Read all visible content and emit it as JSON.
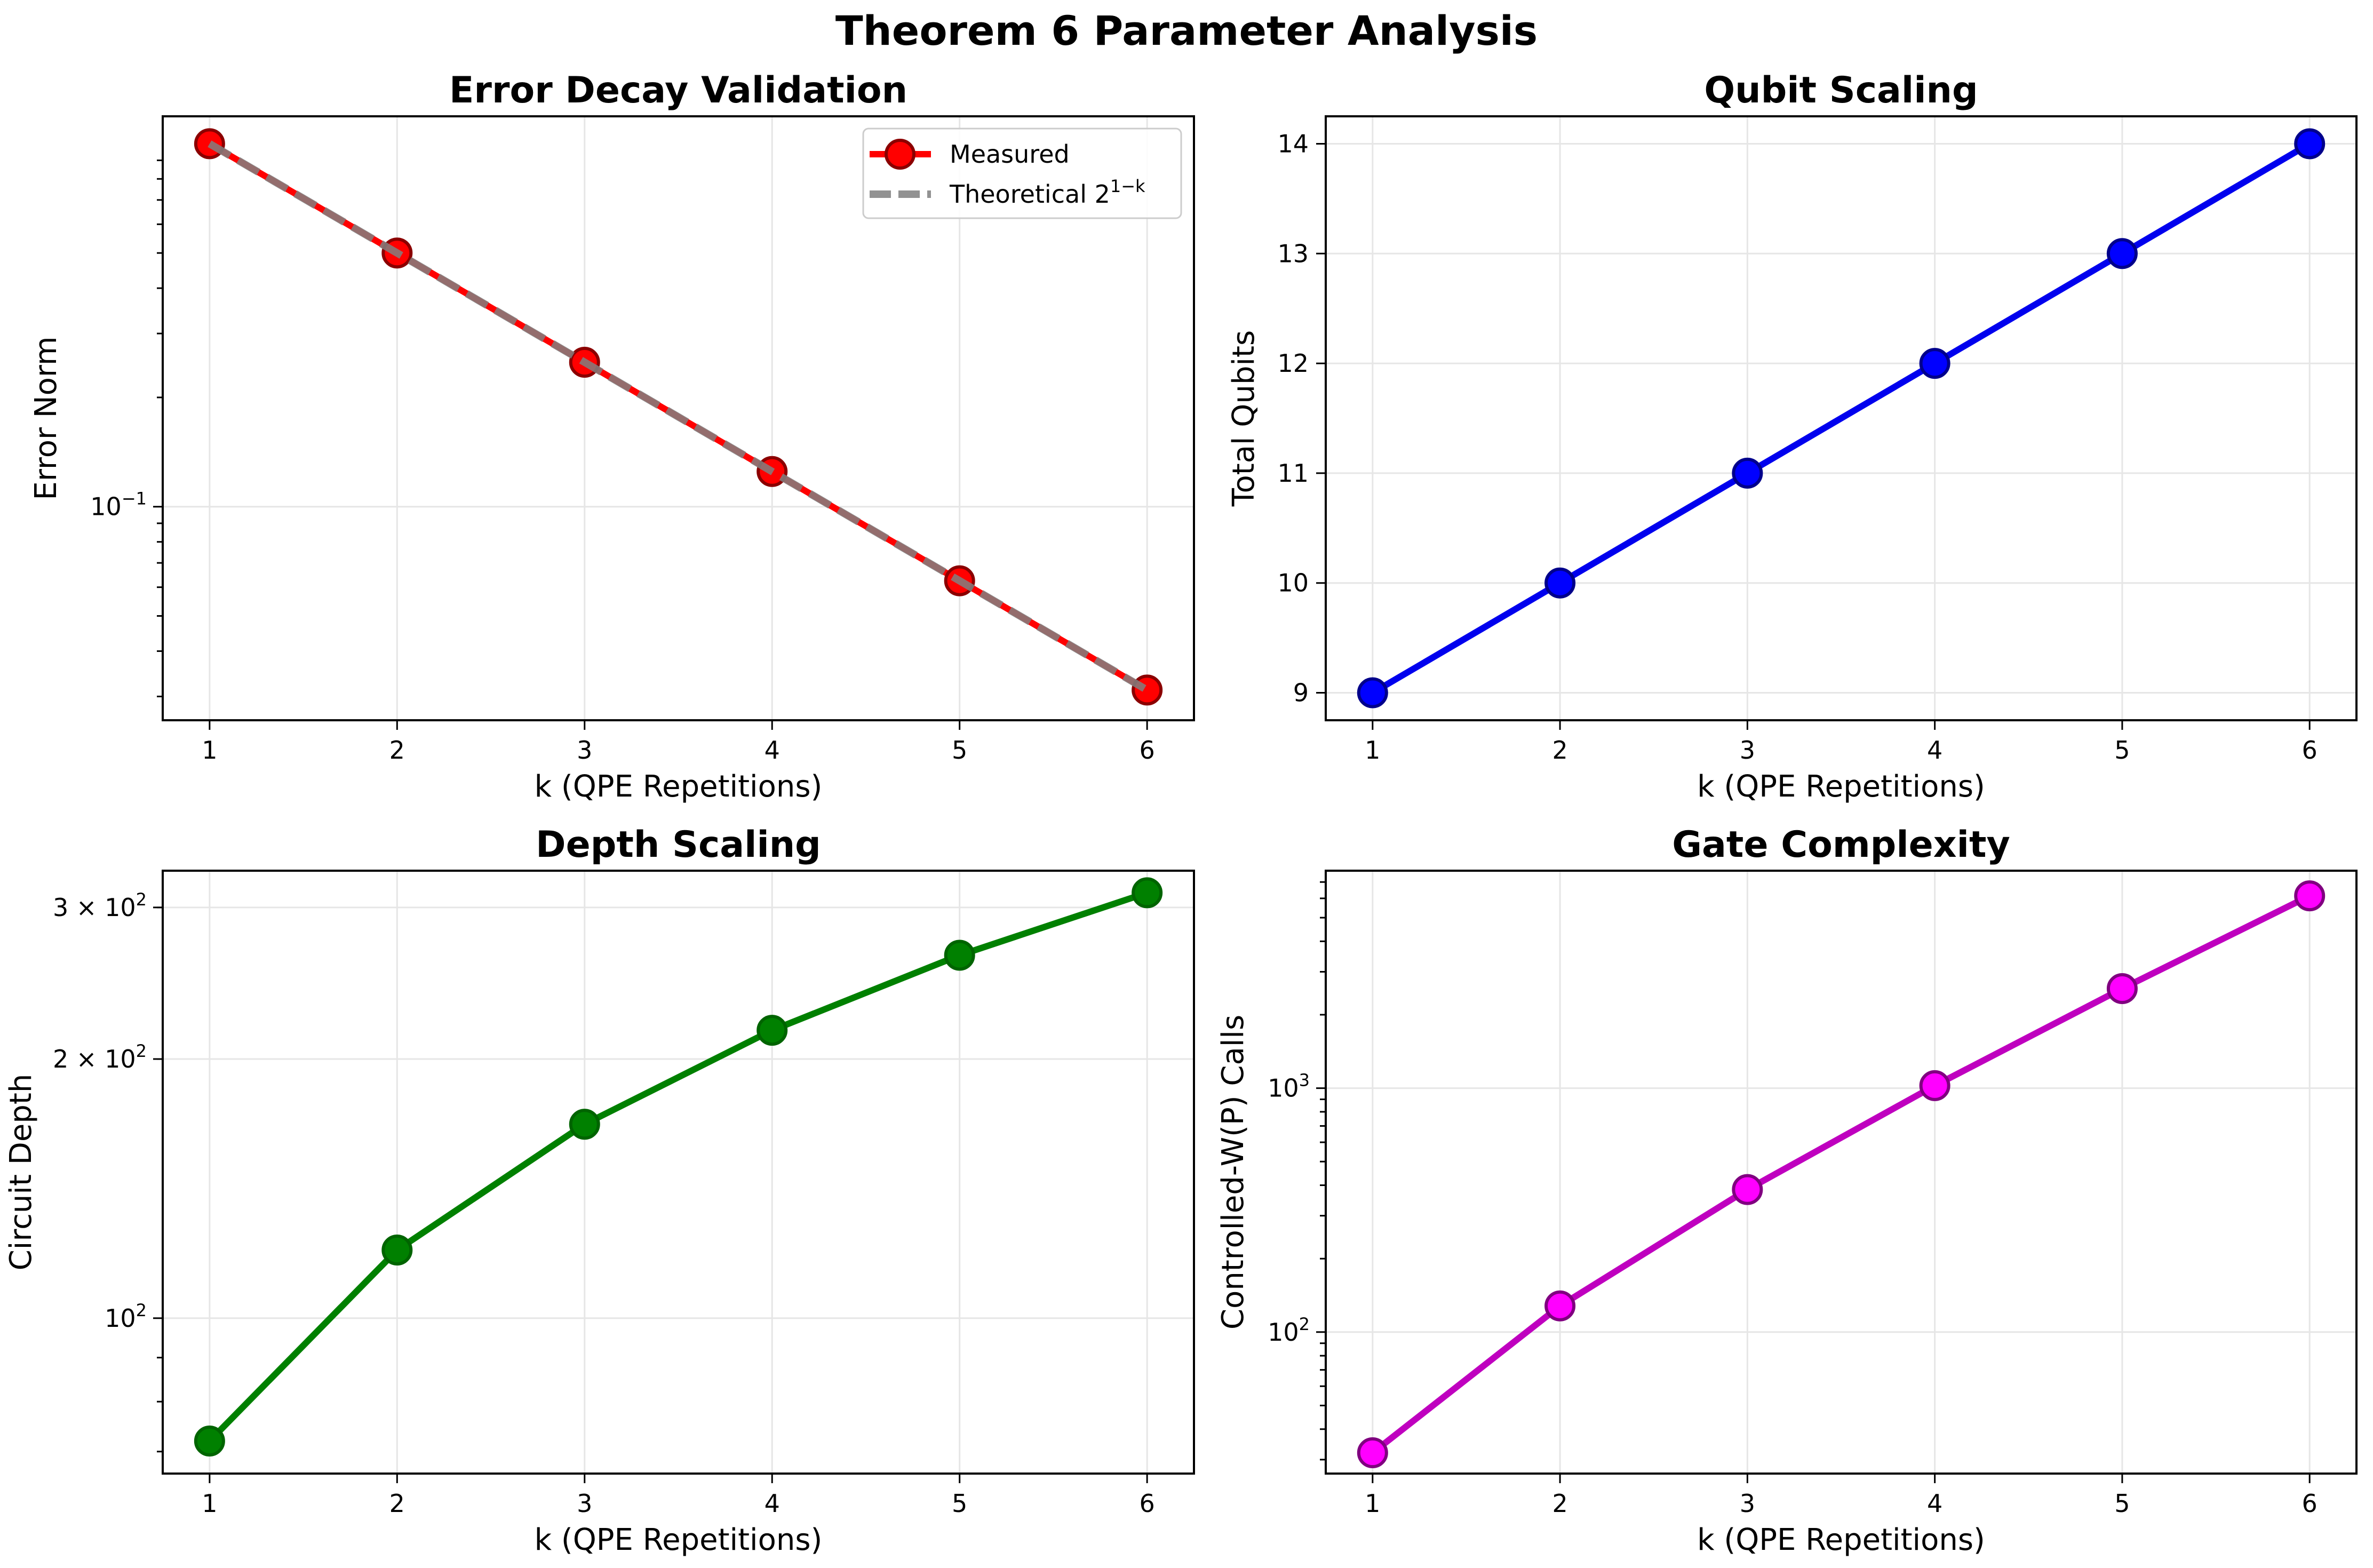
{
  "figure": {
    "title": "Theorem 6 Parameter Analysis"
  },
  "chart_data": [
    {
      "type": "line",
      "title": "Error Decay Validation",
      "xlabel": "k (QPE Repetitions)",
      "ylabel": "Error Norm",
      "yscale": "log",
      "x": [
        1,
        2,
        3,
        4,
        5,
        6
      ],
      "xticks": [
        "1",
        "2",
        "3",
        "4",
        "5",
        "6"
      ],
      "xlim": [
        0.75,
        6.25
      ],
      "ylim": [
        0.0258,
        1.19
      ],
      "yticks": [
        {
          "value": 0.1,
          "base": "10",
          "exp": "−1"
        }
      ],
      "grid": true,
      "legend": "top-right",
      "series": [
        {
          "name": "Measured",
          "values": [
            1.0,
            0.5,
            0.25,
            0.125,
            0.0625,
            0.03125
          ],
          "color": "#ff0000",
          "edge": "#8b0000",
          "style": "solid-markers"
        },
        {
          "name": "Theoretical 2",
          "name_sup": "1−k",
          "values": [
            1.0,
            0.5,
            0.25,
            0.125,
            0.0625,
            0.03125
          ],
          "color": "#808080",
          "style": "dashed"
        }
      ]
    },
    {
      "type": "line",
      "title": "Qubit Scaling",
      "xlabel": "k (QPE Repetitions)",
      "ylabel": "Total Qubits",
      "yscale": "linear",
      "x": [
        1,
        2,
        3,
        4,
        5,
        6
      ],
      "xticks": [
        "1",
        "2",
        "3",
        "4",
        "5",
        "6"
      ],
      "xlim": [
        0.75,
        6.25
      ],
      "ylim": [
        8.75,
        14.25
      ],
      "yticks": [
        {
          "value": 9,
          "label": "9"
        },
        {
          "value": 10,
          "label": "10"
        },
        {
          "value": 11,
          "label": "11"
        },
        {
          "value": 12,
          "label": "12"
        },
        {
          "value": 13,
          "label": "13"
        },
        {
          "value": 14,
          "label": "14"
        }
      ],
      "grid": true,
      "series": [
        {
          "values": [
            9,
            10,
            11,
            12,
            13,
            14
          ],
          "color": "#0000ee",
          "fill": "#0000ff",
          "edge": "#00008b"
        }
      ]
    },
    {
      "type": "line",
      "title": "Depth Scaling",
      "xlabel": "k (QPE Repetitions)",
      "ylabel": "Circuit Depth",
      "yscale": "log",
      "x": [
        1,
        2,
        3,
        4,
        5,
        6
      ],
      "xticks": [
        "1",
        "2",
        "3",
        "4",
        "5",
        "6"
      ],
      "xlim": [
        0.75,
        6.25
      ],
      "ylim": [
        66,
        331
      ],
      "yticks": [
        {
          "value": 100,
          "base": "10",
          "exp": "2"
        },
        {
          "value": 200,
          "pre": "2 × ",
          "base": "10",
          "exp": "2"
        },
        {
          "value": 300,
          "pre": "3 × ",
          "base": "10",
          "exp": "2"
        }
      ],
      "grid": true,
      "series": [
        {
          "values": [
            72,
            120,
            168,
            216,
            264,
            312
          ],
          "color": "#008000",
          "fill": "#008000",
          "edge": "#006400"
        }
      ]
    },
    {
      "type": "line",
      "title": "Gate Complexity",
      "xlabel": "k (QPE Repetitions)",
      "ylabel": "Controlled-W(P) Calls",
      "yscale": "log",
      "x": [
        1,
        2,
        3,
        4,
        5,
        6
      ],
      "xticks": [
        "1",
        "2",
        "3",
        "4",
        "5",
        "6"
      ],
      "xlim": [
        0.75,
        6.25
      ],
      "ylim": [
        26.3,
        7790
      ],
      "yticks": [
        {
          "value": 100,
          "base": "10",
          "exp": "2"
        },
        {
          "value": 1000,
          "base": "10",
          "exp": "3"
        }
      ],
      "grid": true,
      "series": [
        {
          "values": [
            32,
            128,
            384,
            1024,
            2560,
            6144
          ],
          "color": "#bf00bf",
          "fill": "#ff00ff",
          "edge": "#800080"
        }
      ]
    }
  ]
}
